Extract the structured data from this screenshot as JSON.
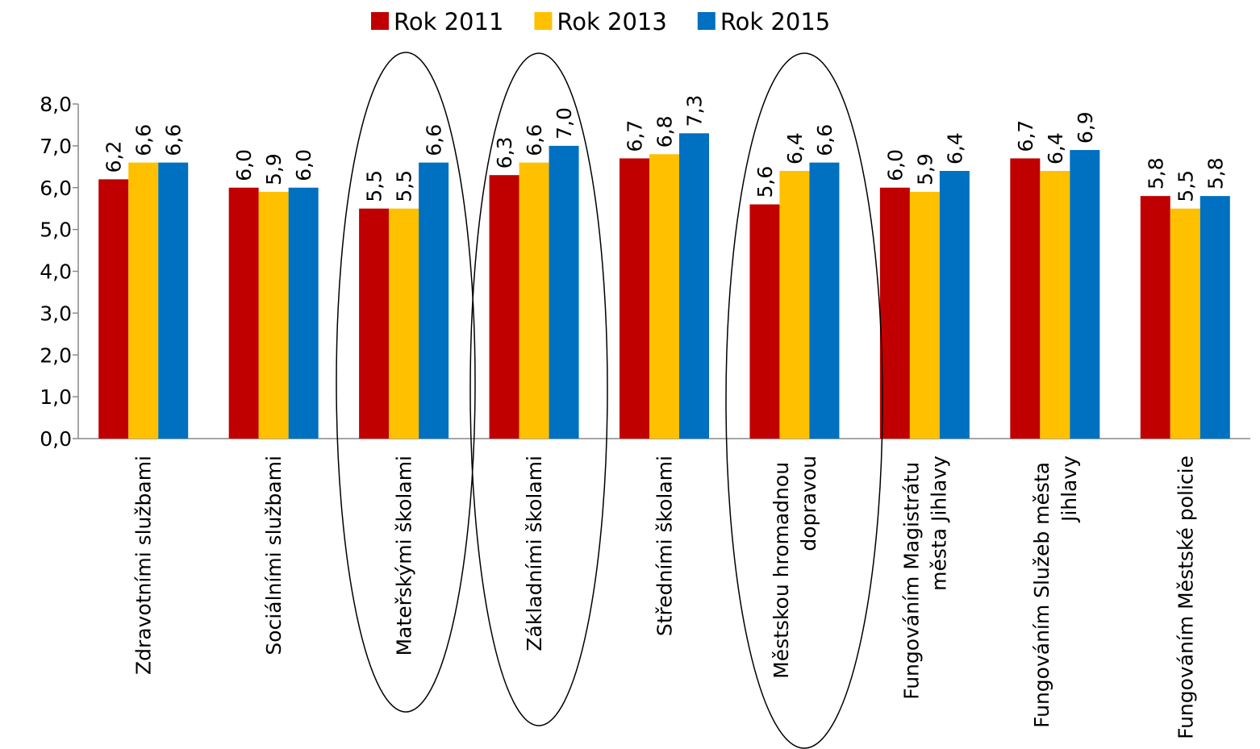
{
  "chart_data": {
    "type": "bar",
    "categories": [
      "Zdravotními službami",
      "Sociálními službami",
      "Mateřskými školami",
      "Základními školami",
      "Středními školami",
      "Městskou hromadnou dopravou",
      "Fungováním Magistrátu města Jihlavy",
      "Fungováním Služeb města Jihlavy",
      "Fungováním Městské policie"
    ],
    "series": [
      {
        "name": "Rok 2011",
        "color": "#c00000",
        "values": [
          6.2,
          6.0,
          5.5,
          6.3,
          6.7,
          5.6,
          6.0,
          6.7,
          5.8
        ],
        "value_labels": [
          "6,2",
          "6,0",
          "5,5",
          "6,3",
          "6,7",
          "5,6",
          "6,0",
          "6,7",
          "5,8"
        ]
      },
      {
        "name": "Rok 2013",
        "color": "#ffc000",
        "values": [
          6.6,
          5.9,
          5.5,
          6.6,
          6.8,
          6.4,
          5.9,
          6.4,
          5.5
        ],
        "value_labels": [
          "6,6",
          "5,9",
          "5,5",
          "6,6",
          "6,8",
          "6,4",
          "5,9",
          "6,4",
          "5,5"
        ]
      },
      {
        "name": "Rok 2015",
        "color": "#0070c0",
        "values": [
          6.6,
          6.0,
          6.6,
          7.0,
          7.3,
          6.6,
          6.4,
          6.9,
          5.8
        ],
        "value_labels": [
          "6,6",
          "6,0",
          "6,6",
          "7,0",
          "7,3",
          "6,6",
          "6,4",
          "6,9",
          "5,8"
        ]
      }
    ],
    "ylim": [
      0,
      8
    ],
    "yticks": [
      {
        "value": 0,
        "label": "0,0"
      },
      {
        "value": 1,
        "label": "1,0"
      },
      {
        "value": 2,
        "label": "2,0"
      },
      {
        "value": 3,
        "label": "3,0"
      },
      {
        "value": 4,
        "label": "4,0"
      },
      {
        "value": 5,
        "label": "5,0"
      },
      {
        "value": 6,
        "label": "6,0"
      },
      {
        "value": 7,
        "label": "7,0"
      },
      {
        "value": 8,
        "label": "8,0"
      }
    ],
    "legend": "top",
    "grid": false
  }
}
